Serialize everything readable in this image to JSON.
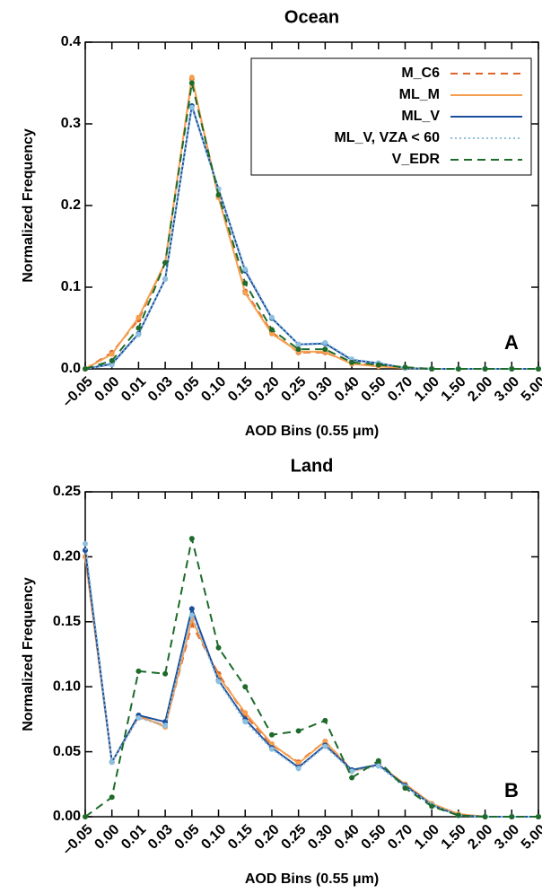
{
  "chart_data": [
    {
      "type": "line",
      "title": "Ocean",
      "x_label": "AOD Bins (0.55 μm)",
      "y_label": "Normalized Frequency",
      "annotation": "A",
      "legend": "top-right",
      "categories": [
        "–0.05",
        "0.00",
        "0.01",
        "0.03",
        "0.05",
        "0.10",
        "0.15",
        "0.20",
        "0.25",
        "0.30",
        "0.40",
        "0.50",
        "0.70",
        "1.00",
        "1.50",
        "2.00",
        "3.00",
        "5.00"
      ],
      "ylim": [
        0,
        0.4
      ],
      "yticks": [
        {
          "value": 0,
          "label": "0.0"
        },
        0.1,
        0.2,
        0.3,
        0.4
      ],
      "series": [
        {
          "name": "M_C6",
          "color": "#e0632a",
          "dash": "8,6",
          "values": [
            0,
            0.02,
            0.06,
            0.13,
            0.355,
            0.21,
            0.095,
            0.045,
            0.02,
            0.02,
            0.007,
            0.004,
            0.001,
            0,
            0,
            0,
            0,
            0
          ]
        },
        {
          "name": "ML_M",
          "color": "#f5a050",
          "dash": "none",
          "values": [
            0,
            0.018,
            0.063,
            0.13,
            0.357,
            0.21,
            0.093,
            0.043,
            0.021,
            0.021,
            0.006,
            0.003,
            0.001,
            0,
            0,
            0,
            0,
            0
          ]
        },
        {
          "name": "ML_V",
          "color": "#1a4f9c",
          "dash": "none",
          "values": [
            0,
            0.006,
            0.043,
            0.11,
            0.322,
            0.22,
            0.12,
            0.062,
            0.03,
            0.031,
            0.011,
            0.007,
            0.001,
            0,
            0,
            0,
            0,
            0
          ]
        },
        {
          "name": "ML_V, VZA < 60",
          "color": "#8ec0e0",
          "dash": "2,3",
          "values": [
            0,
            0.005,
            0.042,
            0.11,
            0.32,
            0.22,
            0.122,
            0.063,
            0.03,
            0.032,
            0.012,
            0.007,
            0.001,
            0,
            0,
            0,
            0,
            0
          ]
        },
        {
          "name": "V_EDR",
          "color": "#1d6b2a",
          "dash": "9,6",
          "values": [
            0,
            0.01,
            0.05,
            0.13,
            0.35,
            0.213,
            0.105,
            0.048,
            0.024,
            0.024,
            0.008,
            0.005,
            0.002,
            0,
            0,
            0,
            0,
            0
          ]
        }
      ]
    },
    {
      "type": "line",
      "title": "Land",
      "x_label": "AOD Bins (0.55 μm)",
      "y_label": "Normalized Frequency",
      "annotation": "B",
      "categories": [
        "–0.05",
        "0.00",
        "0.01",
        "0.03",
        "0.05",
        "0.10",
        "0.15",
        "0.20",
        "0.25",
        "0.30",
        "0.40",
        "0.50",
        "0.70",
        "1.00",
        "1.50",
        "2.00",
        "3.00",
        "5.00"
      ],
      "ylim": [
        0,
        0.25
      ],
      "yticks": [
        {
          "value": 0,
          "label": "0.00"
        },
        0.05,
        {
          "value": 0.1,
          "label": "0.10"
        },
        0.15,
        {
          "value": 0.2,
          "label": "0.20"
        },
        0.25
      ],
      "series": [
        {
          "name": "M_C6",
          "color": "#e0632a",
          "dash": "8,6",
          "values": [
            0.2,
            0.042,
            0.077,
            0.07,
            0.148,
            0.11,
            0.078,
            0.055,
            0.042,
            0.058,
            0.036,
            0.04,
            0.025,
            0.01,
            0.002,
            0,
            0,
            0
          ]
        },
        {
          "name": "ML_M",
          "color": "#f5a050",
          "dash": "none",
          "values": [
            0.2,
            0.042,
            0.078,
            0.069,
            0.152,
            0.108,
            0.08,
            0.056,
            0.041,
            0.058,
            0.035,
            0.04,
            0.025,
            0.01,
            0.002,
            0,
            0,
            0
          ]
        },
        {
          "name": "ML_V",
          "color": "#1a4f9c",
          "dash": "none",
          "values": [
            0.205,
            0.042,
            0.078,
            0.073,
            0.16,
            0.105,
            0.075,
            0.053,
            0.038,
            0.055,
            0.036,
            0.04,
            0.024,
            0.009,
            0.001,
            0,
            0,
            0
          ]
        },
        {
          "name": "ML_V, VZA < 60",
          "color": "#8ec0e0",
          "dash": "2,3",
          "values": [
            0.21,
            0.042,
            0.076,
            0.07,
            0.155,
            0.104,
            0.073,
            0.052,
            0.037,
            0.054,
            0.035,
            0.039,
            0.023,
            0.009,
            0.001,
            0,
            0,
            0
          ]
        },
        {
          "name": "V_EDR",
          "color": "#1d6b2a",
          "dash": "9,6",
          "values": [
            0,
            0.015,
            0.112,
            0.11,
            0.214,
            0.13,
            0.1,
            0.063,
            0.066,
            0.074,
            0.03,
            0.043,
            0.022,
            0.008,
            0.001,
            0,
            0,
            0
          ]
        }
      ]
    }
  ]
}
